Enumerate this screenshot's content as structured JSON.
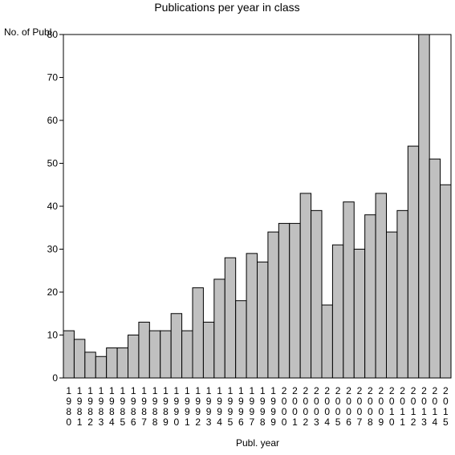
{
  "chart_data": {
    "type": "bar",
    "title": "Publications per year in class",
    "ylabel": "No. of Publ.",
    "xlabel": "Publ. year",
    "ylim": [
      0,
      80
    ],
    "yticks": [
      0,
      10,
      20,
      30,
      40,
      50,
      60,
      70,
      80
    ],
    "grid": false,
    "legend": "none",
    "bar_color": "#c0c0c0",
    "categories": [
      "1980",
      "1981",
      "1982",
      "1983",
      "1984",
      "1985",
      "1986",
      "1987",
      "1988",
      "1989",
      "1990",
      "1991",
      "1992",
      "1993",
      "1994",
      "1995",
      "1996",
      "1997",
      "1998",
      "1999",
      "2000",
      "2001",
      "2002",
      "2003",
      "2004",
      "2005",
      "2006",
      "2007",
      "2008",
      "2009",
      "2010",
      "2011",
      "2012",
      "2013",
      "2014",
      "2015"
    ],
    "values": [
      11,
      9,
      6,
      5,
      7,
      7,
      10,
      13,
      11,
      11,
      15,
      11,
      21,
      13,
      23,
      28,
      18,
      29,
      27,
      34,
      36,
      36,
      43,
      39,
      17,
      31,
      41,
      30,
      38,
      43,
      34,
      39,
      54,
      80,
      51,
      45
    ]
  }
}
